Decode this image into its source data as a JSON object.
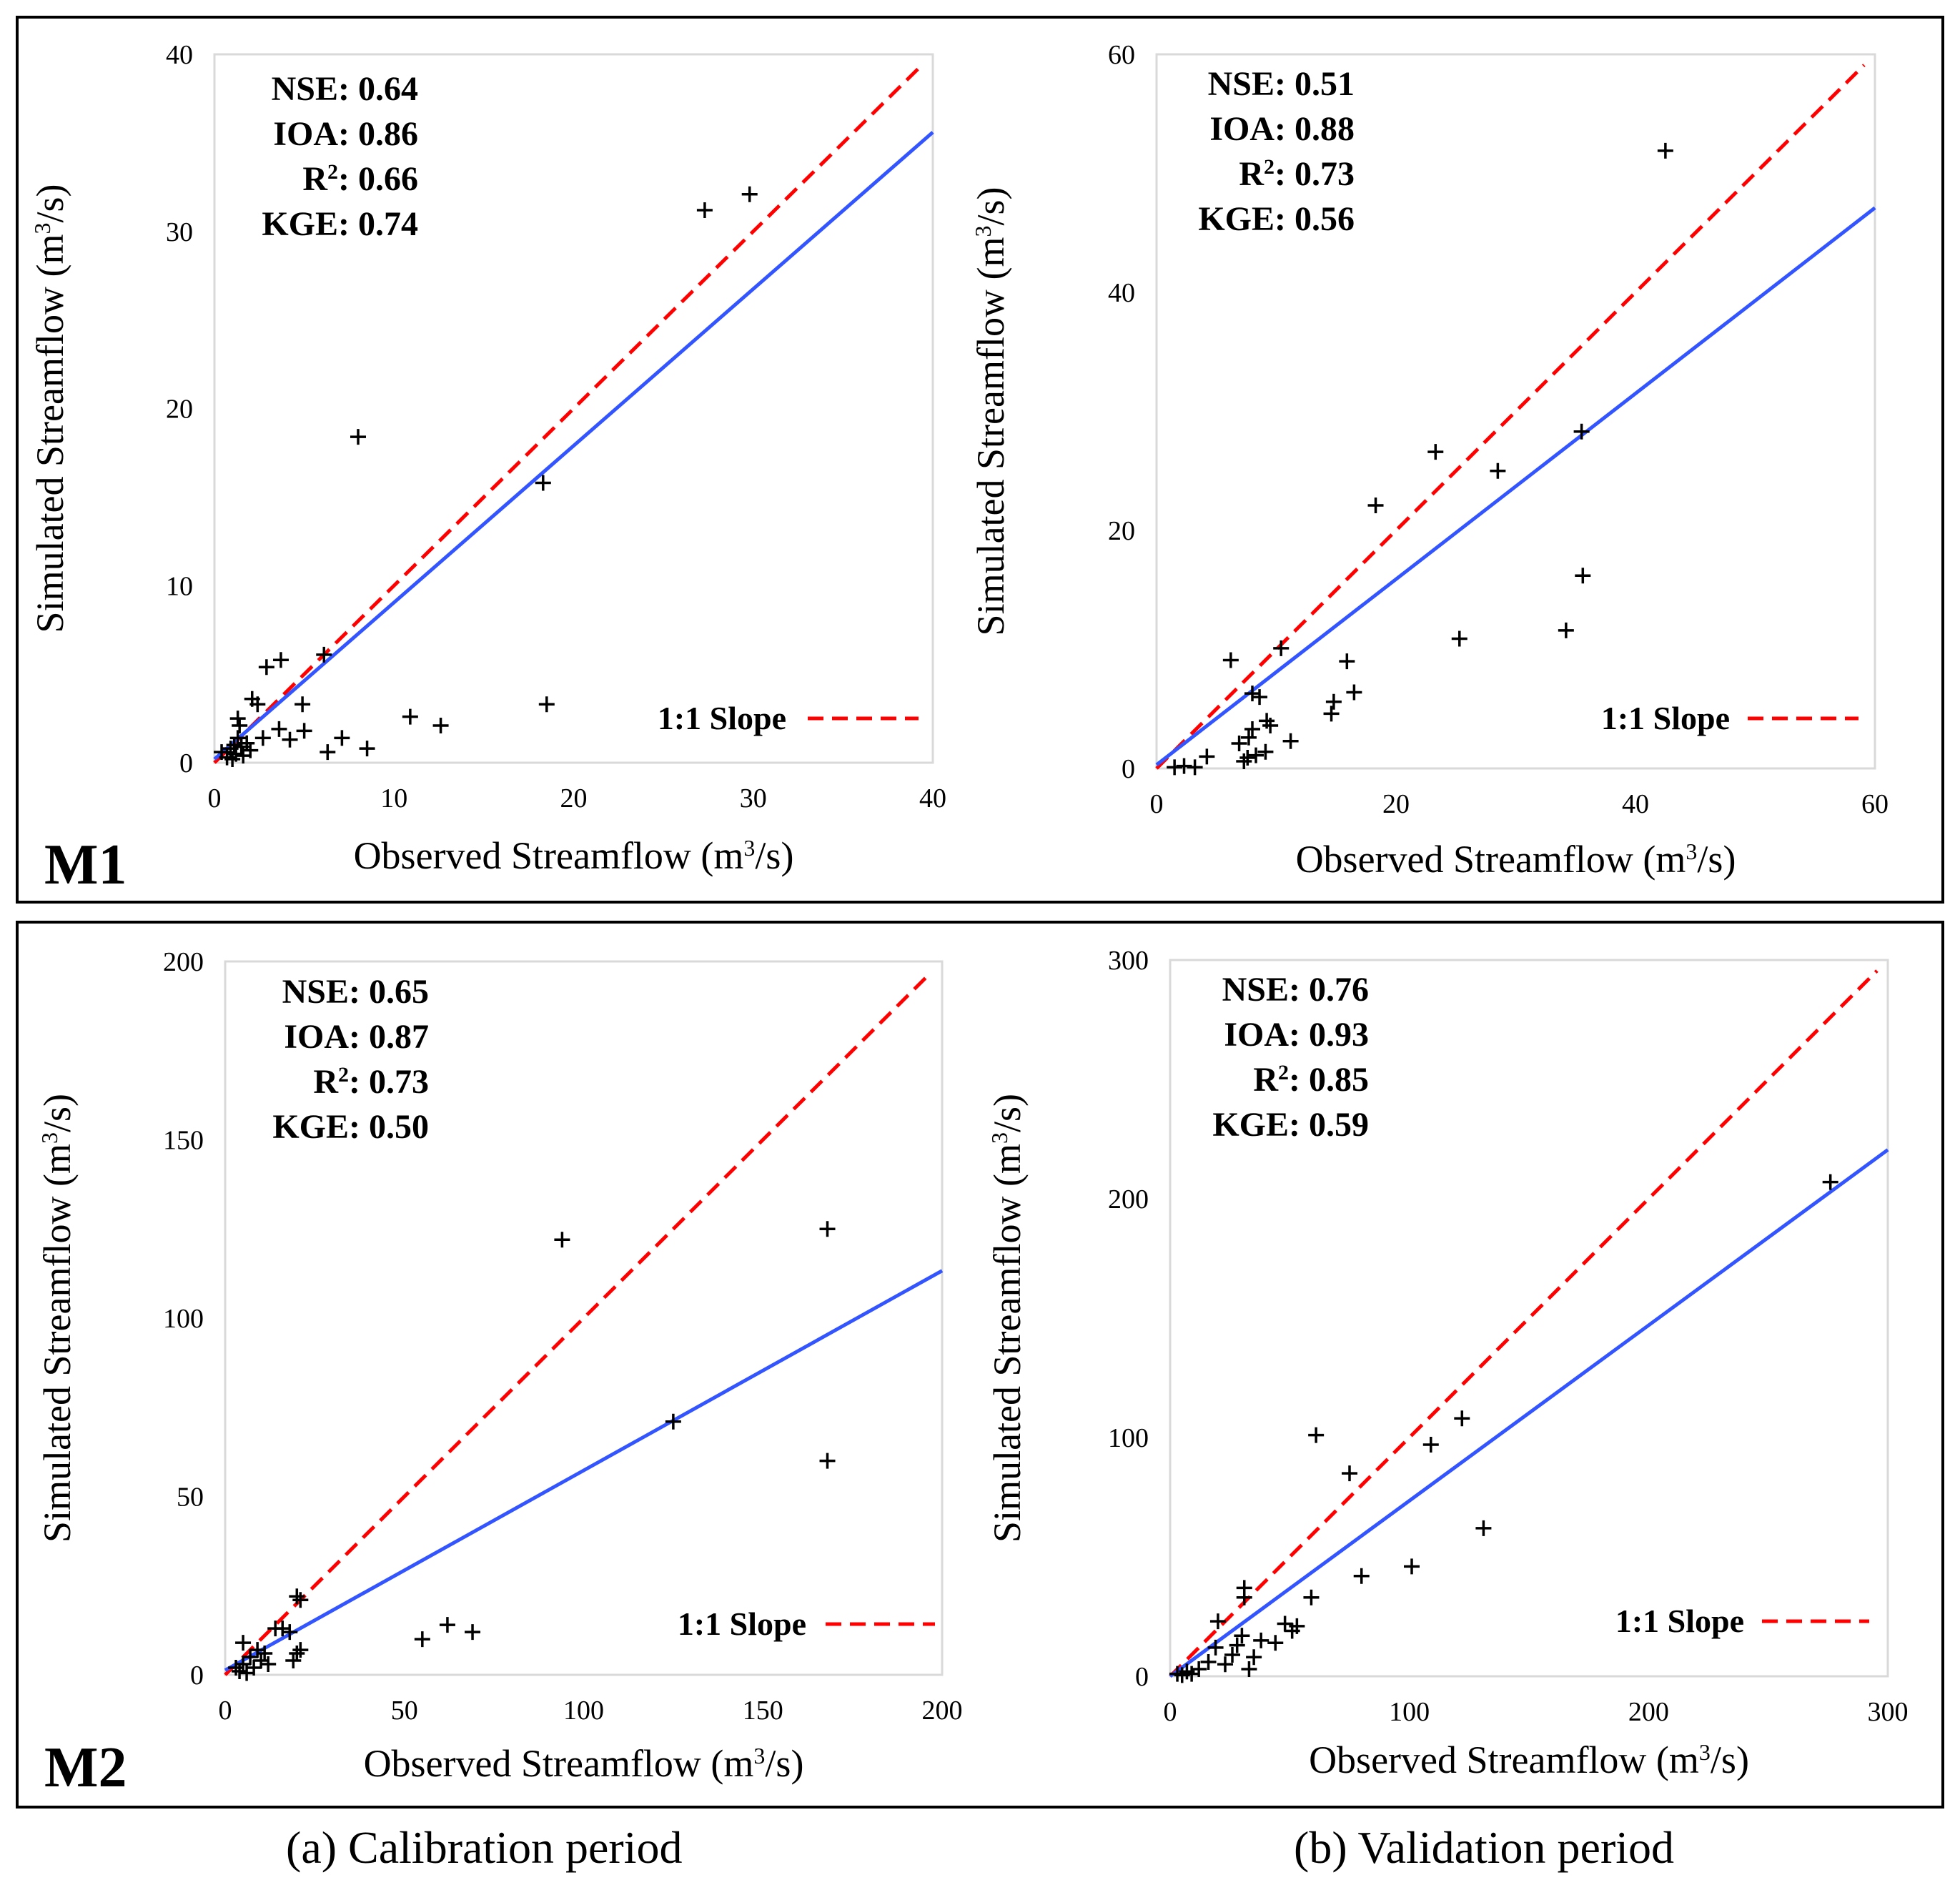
{
  "rows": [
    {
      "label": "M1"
    },
    {
      "label": "M2"
    }
  ],
  "captions": [
    "(a) Calibration period",
    "(b) Validation period"
  ],
  "colors": {
    "one_to_one": "#FF0000",
    "fit": "#3355FF",
    "points": "#000000"
  },
  "chart_data": [
    {
      "type": "scatter",
      "model": "M1",
      "period": "Calibration",
      "xlabel": "Observed Streamflow (m3/s)",
      "ylabel": "Simulated Streamflow (m3/s)",
      "xlim": [
        0,
        40
      ],
      "ylim": [
        0,
        40
      ],
      "xticks": [
        0,
        10,
        20,
        30,
        40
      ],
      "yticks": [
        0,
        10,
        20,
        30,
        40
      ],
      "stats": [
        {
          "key": "NSE",
          "value": "0.64"
        },
        {
          "key": "IOA",
          "value": "0.86"
        },
        {
          "key": "R2",
          "value": "0.66"
        },
        {
          "key": "KGE",
          "value": "0.74"
        }
      ],
      "legend": "1:1 Slope",
      "fit": {
        "slope": 0.885,
        "intercept": 0.2
      },
      "points": [
        [
          0.4,
          0.6
        ],
        [
          0.7,
          0.3
        ],
        [
          0.9,
          0.8
        ],
        [
          1.0,
          0.2
        ],
        [
          1.1,
          1.0
        ],
        [
          1.2,
          0.5
        ],
        [
          1.3,
          1.4
        ],
        [
          1.3,
          2.5
        ],
        [
          1.4,
          2.1
        ],
        [
          1.5,
          0.9
        ],
        [
          1.6,
          0.4
        ],
        [
          1.8,
          1.1
        ],
        [
          2.0,
          0.7
        ],
        [
          2.1,
          3.6
        ],
        [
          2.4,
          3.3
        ],
        [
          2.7,
          1.4
        ],
        [
          2.9,
          5.4
        ],
        [
          3.7,
          5.8
        ],
        [
          3.6,
          1.9
        ],
        [
          4.2,
          1.3
        ],
        [
          4.9,
          3.3
        ],
        [
          5.0,
          1.8
        ],
        [
          6.1,
          6.1
        ],
        [
          6.3,
          0.6
        ],
        [
          7.1,
          1.4
        ],
        [
          8.0,
          18.4
        ],
        [
          8.5,
          0.8
        ],
        [
          10.9,
          2.6
        ],
        [
          12.6,
          2.1
        ],
        [
          18.3,
          15.8
        ],
        [
          18.5,
          3.3
        ],
        [
          27.3,
          31.2
        ],
        [
          29.8,
          32.1
        ]
      ]
    },
    {
      "type": "scatter",
      "model": "M1",
      "period": "Validation",
      "xlabel": "Observed Streamflow (m3/s)",
      "ylabel": "Simulated Streamflow (m3/s)",
      "xlim": [
        0,
        60
      ],
      "ylim": [
        0,
        60
      ],
      "xticks": [
        0,
        20,
        40,
        60
      ],
      "yticks": [
        0,
        20,
        40,
        60
      ],
      "stats": [
        {
          "key": "NSE",
          "value": "0.51"
        },
        {
          "key": "IOA",
          "value": "0.88"
        },
        {
          "key": "R2",
          "value": "0.73"
        },
        {
          "key": "KGE",
          "value": "0.56"
        }
      ],
      "legend": "1:1 Slope",
      "fit": {
        "slope": 0.78,
        "intercept": 0.3
      },
      "points": [
        [
          1.5,
          0.1
        ],
        [
          2.3,
          0.2
        ],
        [
          3.2,
          0.1
        ],
        [
          4.2,
          1.0
        ],
        [
          6.2,
          9.1
        ],
        [
          6.9,
          2.1
        ],
        [
          7.3,
          0.6
        ],
        [
          7.6,
          0.9
        ],
        [
          7.7,
          2.6
        ],
        [
          8.0,
          3.3
        ],
        [
          8.0,
          6.3
        ],
        [
          8.3,
          1.1
        ],
        [
          8.6,
          6.0
        ],
        [
          9.1,
          1.4
        ],
        [
          9.2,
          4.0
        ],
        [
          9.5,
          3.6
        ],
        [
          10.4,
          10.1
        ],
        [
          11.2,
          2.3
        ],
        [
          14.6,
          4.6
        ],
        [
          14.8,
          5.6
        ],
        [
          15.9,
          9.0
        ],
        [
          16.5,
          6.4
        ],
        [
          18.3,
          22.1
        ],
        [
          23.3,
          26.6
        ],
        [
          25.3,
          10.9
        ],
        [
          28.5,
          25.0
        ],
        [
          34.2,
          11.6
        ],
        [
          35.5,
          28.3
        ],
        [
          35.6,
          16.2
        ],
        [
          42.5,
          51.9
        ]
      ]
    },
    {
      "type": "scatter",
      "model": "M2",
      "period": "Calibration",
      "xlabel": "Observed Streamflow (m3/s)",
      "ylabel": "Simulated Streamflow (m3/s)",
      "xlim": [
        0,
        200
      ],
      "ylim": [
        0,
        200
      ],
      "xticks": [
        0,
        50,
        100,
        150,
        200
      ],
      "yticks": [
        0,
        50,
        100,
        150,
        200
      ],
      "stats": [
        {
          "key": "NSE",
          "value": "0.65"
        },
        {
          "key": "IOA",
          "value": "0.87"
        },
        {
          "key": "R2",
          "value": "0.73"
        },
        {
          "key": "KGE",
          "value": "0.50"
        }
      ],
      "legend": "1:1 Slope",
      "fit": {
        "slope": 0.56,
        "intercept": 1.3
      },
      "points": [
        [
          3,
          2
        ],
        [
          4,
          1
        ],
        [
          5,
          3
        ],
        [
          5,
          9
        ],
        [
          6,
          0.5
        ],
        [
          7,
          5
        ],
        [
          8,
          2
        ],
        [
          9,
          7
        ],
        [
          10,
          4
        ],
        [
          11,
          6
        ],
        [
          12,
          3
        ],
        [
          14,
          13
        ],
        [
          16,
          13
        ],
        [
          18,
          12
        ],
        [
          19,
          4
        ],
        [
          20,
          6
        ],
        [
          20,
          22
        ],
        [
          21,
          21
        ],
        [
          21,
          7
        ],
        [
          55,
          10
        ],
        [
          62,
          14
        ],
        [
          69,
          12
        ],
        [
          94,
          122
        ],
        [
          125,
          71
        ],
        [
          168,
          125
        ],
        [
          168,
          60
        ]
      ]
    },
    {
      "type": "scatter",
      "model": "M2",
      "period": "Validation",
      "xlabel": "Observed Streamflow (m3/s)",
      "ylabel": "Simulated Streamflow (m3/s)",
      "xlim": [
        0,
        300
      ],
      "ylim": [
        0,
        300
      ],
      "xticks": [
        0,
        100,
        200,
        300
      ],
      "yticks": [
        0,
        100,
        200,
        300
      ],
      "stats": [
        {
          "key": "NSE",
          "value": "0.76"
        },
        {
          "key": "IOA",
          "value": "0.93"
        },
        {
          "key": "R2",
          "value": "0.85"
        },
        {
          "key": "KGE",
          "value": "0.59"
        }
      ],
      "legend": "1:1 Slope",
      "fit": {
        "slope": 0.735,
        "intercept": 0
      },
      "points": [
        [
          3,
          1
        ],
        [
          5,
          0.5
        ],
        [
          7,
          2
        ],
        [
          9,
          1
        ],
        [
          12,
          3
        ],
        [
          16,
          6
        ],
        [
          19,
          12
        ],
        [
          20,
          23
        ],
        [
          23,
          5
        ],
        [
          26,
          9
        ],
        [
          28,
          13
        ],
        [
          30,
          17
        ],
        [
          31,
          33
        ],
        [
          31,
          37
        ],
        [
          33,
          3
        ],
        [
          35,
          8
        ],
        [
          38,
          15
        ],
        [
          44,
          14
        ],
        [
          48,
          22
        ],
        [
          51,
          19
        ],
        [
          53,
          21
        ],
        [
          59,
          33
        ],
        [
          61,
          101
        ],
        [
          75,
          85
        ],
        [
          80,
          42
        ],
        [
          101,
          46
        ],
        [
          109,
          97
        ],
        [
          122,
          108
        ],
        [
          131,
          62
        ],
        [
          276,
          207
        ]
      ]
    }
  ]
}
